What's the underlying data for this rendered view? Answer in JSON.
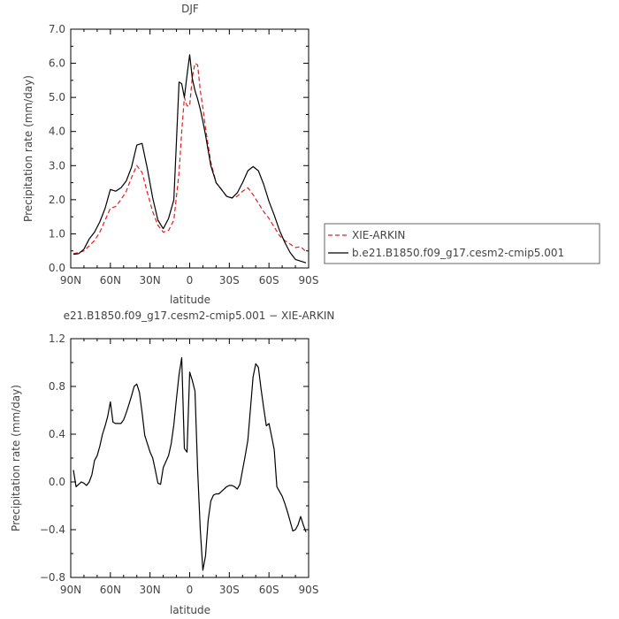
{
  "chart_data": [
    {
      "type": "line",
      "title": "DJF",
      "xlabel": "latitude",
      "ylabel": "Precipitation rate (mm/day)",
      "xlim": [
        90,
        -90
      ],
      "ylim": [
        0.0,
        7.0
      ],
      "xticks": [
        90,
        60,
        30,
        0,
        -30,
        -60,
        -90
      ],
      "xtick_labels": [
        "90N",
        "60N",
        "30N",
        "0",
        "30S",
        "60S",
        "90S"
      ],
      "yticks": [
        0.0,
        1.0,
        2.0,
        3.0,
        4.0,
        5.0,
        6.0,
        7.0
      ],
      "ytick_labels": [
        "0.0",
        "1.0",
        "2.0",
        "3.0",
        "4.0",
        "5.0",
        "6.0",
        "7.0"
      ],
      "legend_position": "right",
      "series": [
        {
          "name": "XIE-ARKIN",
          "color": "#e02020",
          "dash": "dashed",
          "x": [
            88,
            84,
            80,
            76,
            72,
            68,
            64,
            60,
            56,
            52,
            48,
            44,
            40,
            36,
            32,
            28,
            24,
            20,
            16,
            12,
            8,
            6,
            4,
            2,
            0,
            -2,
            -4,
            -6,
            -8,
            -10,
            -12,
            -16,
            -20,
            -24,
            -28,
            -32,
            -36,
            -40,
            -44,
            -48,
            -52,
            -56,
            -60,
            -64,
            -68,
            -72,
            -76,
            -80,
            -84,
            -88
          ],
          "y": [
            0.42,
            0.45,
            0.5,
            0.65,
            0.8,
            1.05,
            1.4,
            1.75,
            1.8,
            2.0,
            2.25,
            2.65,
            3.0,
            2.8,
            2.2,
            1.65,
            1.25,
            1.05,
            1.1,
            1.4,
            2.8,
            4.0,
            5.0,
            4.75,
            4.75,
            5.6,
            6.0,
            5.95,
            5.2,
            4.7,
            4.1,
            3.1,
            2.5,
            2.3,
            2.1,
            2.05,
            2.1,
            2.25,
            2.35,
            2.15,
            1.9,
            1.65,
            1.45,
            1.2,
            0.95,
            0.8,
            0.7,
            0.6,
            0.62,
            0.48
          ]
        },
        {
          "name": "b.e21.B1850.f09_g17.cesm2-cmip5.001",
          "color": "#000000",
          "dash": "solid",
          "x": [
            88,
            84,
            80,
            76,
            72,
            68,
            64,
            60,
            56,
            52,
            48,
            44,
            40,
            36,
            32,
            28,
            24,
            20,
            16,
            12,
            8,
            6,
            4,
            2,
            0,
            -2,
            -4,
            -6,
            -8,
            -10,
            -12,
            -16,
            -20,
            -24,
            -28,
            -32,
            -36,
            -40,
            -44,
            -48,
            -52,
            -56,
            -60,
            -64,
            -68,
            -72,
            -76,
            -80,
            -84,
            -88
          ],
          "y": [
            0.4,
            0.42,
            0.55,
            0.85,
            1.05,
            1.35,
            1.75,
            2.3,
            2.25,
            2.35,
            2.55,
            2.95,
            3.6,
            3.65,
            2.9,
            2.05,
            1.4,
            1.15,
            1.45,
            2.0,
            5.45,
            5.4,
            5.0,
            5.65,
            6.25,
            5.55,
            5.2,
            4.95,
            4.65,
            4.3,
            3.9,
            3.0,
            2.5,
            2.3,
            2.1,
            2.05,
            2.2,
            2.5,
            2.85,
            2.97,
            2.85,
            2.45,
            1.95,
            1.55,
            1.1,
            0.75,
            0.45,
            0.25,
            0.2,
            0.15
          ]
        }
      ]
    },
    {
      "type": "line",
      "title": "e21.B1850.f09_g17.cesm2-cmip5.001 − XIE-ARKIN",
      "xlabel": "latitude",
      "ylabel": "Precipitation rate (mm/day)",
      "xlim": [
        90,
        -90
      ],
      "ylim": [
        -0.8,
        1.2
      ],
      "xticks": [
        90,
        60,
        30,
        0,
        -30,
        -60,
        -90
      ],
      "xtick_labels": [
        "90N",
        "60N",
        "30N",
        "0",
        "30S",
        "60S",
        "90S"
      ],
      "yticks": [
        -0.8,
        -0.4,
        0.0,
        0.4,
        0.8,
        1.2
      ],
      "ytick_labels": [
        "−0.8",
        "−0.4",
        "0.0",
        "0.4",
        "0.8",
        "1.2"
      ],
      "series": [
        {
          "color": "#000000",
          "dash": "solid",
          "x": [
            88,
            86,
            84,
            82,
            80,
            78,
            76,
            74,
            72,
            70,
            68,
            66,
            64,
            62,
            60,
            58,
            56,
            54,
            52,
            50,
            48,
            46,
            44,
            42,
            40,
            38,
            36,
            34,
            32,
            30,
            28,
            26,
            24,
            22,
            20,
            18,
            16,
            14,
            12,
            10,
            8,
            6,
            4,
            2,
            0,
            -2,
            -4,
            -6,
            -8,
            -10,
            -12,
            -14,
            -16,
            -18,
            -20,
            -22,
            -24,
            -26,
            -28,
            -30,
            -32,
            -34,
            -36,
            -38,
            -40,
            -42,
            -44,
            -46,
            -48,
            -50,
            -52,
            -54,
            -56,
            -58,
            -60,
            -62,
            -64,
            -66,
            -68,
            -70,
            -72,
            -74,
            -76,
            -78,
            -80,
            -82,
            -84,
            -86,
            -88
          ],
          "y": [
            0.1,
            -0.04,
            -0.02,
            0.0,
            -0.01,
            -0.03,
            0.0,
            0.06,
            0.18,
            0.22,
            0.3,
            0.4,
            0.47,
            0.55,
            0.67,
            0.5,
            0.49,
            0.49,
            0.49,
            0.52,
            0.58,
            0.65,
            0.72,
            0.8,
            0.82,
            0.75,
            0.58,
            0.39,
            0.32,
            0.25,
            0.2,
            0.1,
            -0.01,
            -0.02,
            0.12,
            0.17,
            0.22,
            0.32,
            0.48,
            0.7,
            0.9,
            1.04,
            0.28,
            0.25,
            0.92,
            0.85,
            0.76,
            0.1,
            -0.4,
            -0.74,
            -0.62,
            -0.32,
            -0.16,
            -0.11,
            -0.1,
            -0.1,
            -0.08,
            -0.06,
            -0.04,
            -0.03,
            -0.03,
            -0.04,
            -0.06,
            -0.02,
            0.1,
            0.22,
            0.35,
            0.61,
            0.88,
            0.99,
            0.96,
            0.78,
            0.62,
            0.47,
            0.49,
            0.38,
            0.27,
            -0.04,
            -0.08,
            -0.12,
            -0.18,
            -0.25,
            -0.33,
            -0.41,
            -0.4,
            -0.36,
            -0.29,
            -0.36,
            -0.42
          ]
        }
      ]
    }
  ]
}
